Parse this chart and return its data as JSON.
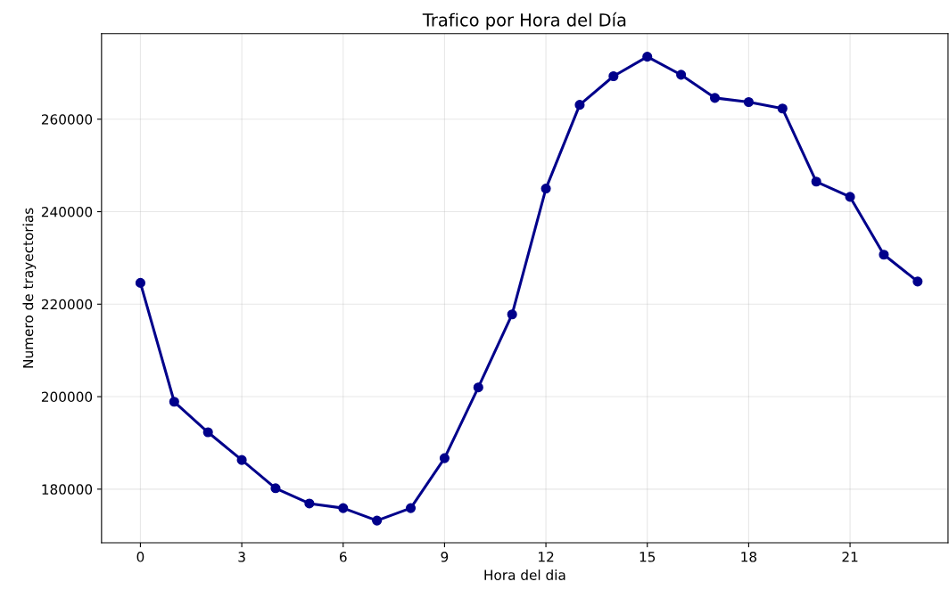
{
  "chart_data": {
    "type": "line",
    "title": "Trafico por Hora del Día",
    "xlabel": "Hora del dia",
    "ylabel": "Numero de trayectorias",
    "x": [
      0,
      1,
      2,
      3,
      4,
      5,
      6,
      7,
      8,
      9,
      10,
      11,
      12,
      13,
      14,
      15,
      16,
      17,
      18,
      19,
      20,
      21,
      22,
      23
    ],
    "series": [
      {
        "color": "#00008b",
        "values": [
          224600,
          198900,
          192300,
          186300,
          180200,
          176900,
          175900,
          173200,
          175900,
          186700,
          202000,
          217800,
          245000,
          263100,
          269300,
          273500,
          269600,
          264600,
          263700,
          262300,
          246500,
          243200,
          230700,
          224900
        ]
      }
    ],
    "xlim": [
      -1.15,
      23.9
    ],
    "xticks": [
      0,
      3,
      6,
      9,
      12,
      15,
      18,
      21
    ],
    "ylim": [
      168400,
      278500
    ],
    "yticks": [
      180000,
      200000,
      220000,
      240000,
      260000
    ],
    "grid": true,
    "marker": "circle",
    "line_style": "solid"
  }
}
